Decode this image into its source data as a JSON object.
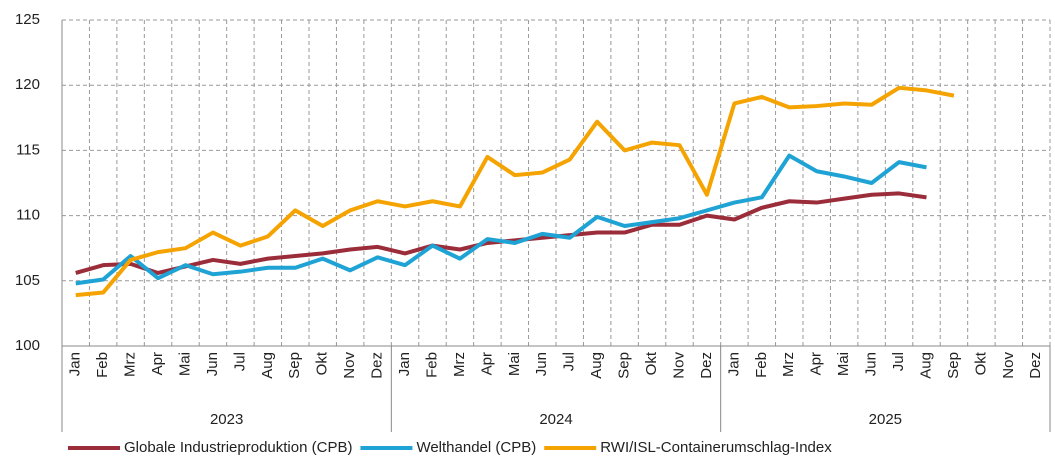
{
  "chart_data": {
    "type": "line",
    "categories": [
      "Jan",
      "Feb",
      "Mrz",
      "Apr",
      "Mai",
      "Jun",
      "Jul",
      "Aug",
      "Sep",
      "Okt",
      "Nov",
      "Dez",
      "Jan",
      "Feb",
      "Mrz",
      "Apr",
      "Mai",
      "Jun",
      "Jul",
      "Aug",
      "Sep",
      "Okt",
      "Nov",
      "Dez",
      "Jan",
      "Feb",
      "Mrz",
      "Apr",
      "Mai",
      "Jun",
      "Jul",
      "Aug",
      "Sep",
      "Okt",
      "Nov",
      "Dez"
    ],
    "category_groups": [
      "2023",
      "2024",
      "2025"
    ],
    "series": [
      {
        "name": "Globale Industrieproduktion (CPB)",
        "color": "#9b2d3a",
        "values": [
          105.6,
          106.2,
          106.3,
          105.6,
          106.1,
          106.6,
          106.3,
          106.7,
          106.9,
          107.1,
          107.4,
          107.6,
          107.1,
          107.7,
          107.4,
          107.9,
          108.1,
          108.3,
          108.5,
          108.7,
          108.7,
          109.3,
          109.3,
          110.0,
          109.7,
          110.6,
          111.1,
          111.0,
          111.3,
          111.6,
          111.7,
          111.4,
          null,
          null,
          null,
          null
        ]
      },
      {
        "name": "Welthandel (CPB)",
        "color": "#1fa3d5",
        "values": [
          104.8,
          105.1,
          106.9,
          105.2,
          106.2,
          105.5,
          105.7,
          106.0,
          106.0,
          106.7,
          105.8,
          106.8,
          106.2,
          107.7,
          106.7,
          108.2,
          107.9,
          108.6,
          108.3,
          109.9,
          109.2,
          109.5,
          109.8,
          110.4,
          111.0,
          111.4,
          114.6,
          113.4,
          113.0,
          112.5,
          114.1,
          113.7,
          null,
          null,
          null,
          null
        ]
      },
      {
        "name": "RWI/ISL-Containerumschlag-Index",
        "color": "#f5a300",
        "values": [
          103.9,
          104.1,
          106.6,
          107.2,
          107.5,
          108.7,
          107.7,
          108.4,
          110.4,
          109.2,
          110.4,
          111.1,
          110.7,
          111.1,
          110.7,
          114.5,
          113.1,
          113.3,
          114.3,
          117.2,
          115.0,
          115.6,
          115.4,
          111.6,
          118.6,
          119.1,
          118.3,
          118.4,
          118.6,
          118.5,
          119.8,
          119.6,
          119.2,
          null,
          null,
          null
        ]
      }
    ],
    "ylim": [
      100,
      125
    ],
    "yticks": [
      100,
      105,
      110,
      115,
      120,
      125
    ],
    "grid": true
  }
}
